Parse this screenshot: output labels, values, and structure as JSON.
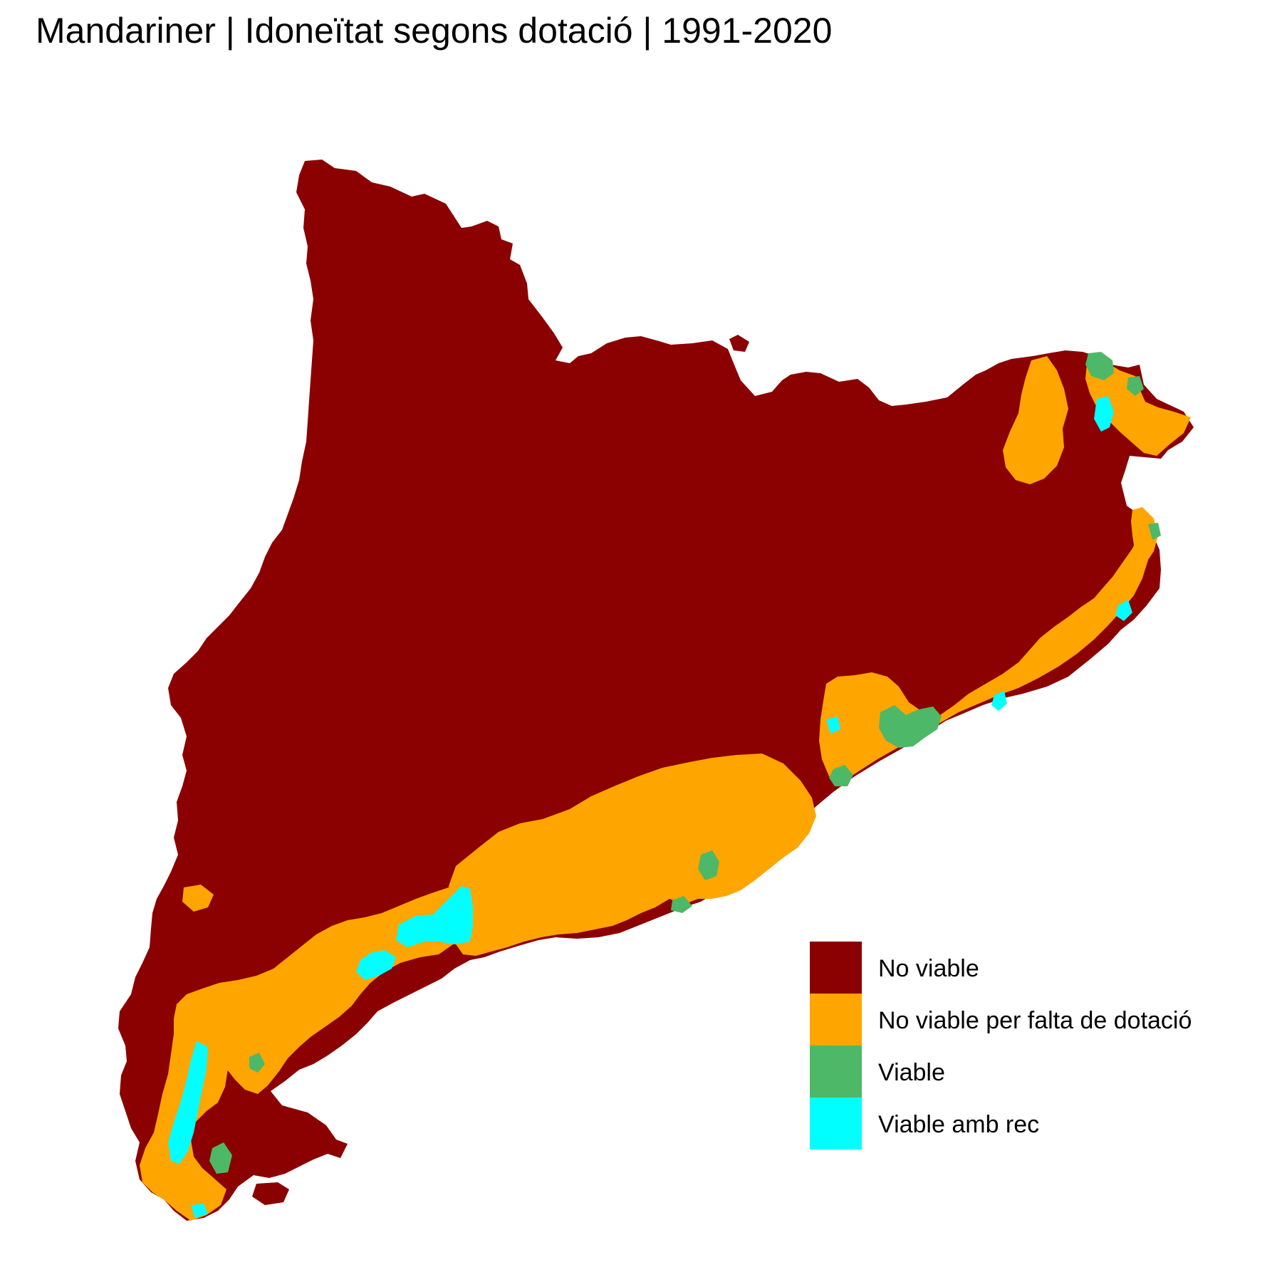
{
  "title": "Mandariner | Idoneïtat segons dotació | 1991-2020",
  "legend": {
    "items": [
      {
        "label": "No viable",
        "color": "#8B0000"
      },
      {
        "label": "No viable per falta de dotació",
        "color": "#FFA500"
      },
      {
        "label": "Viable",
        "color": "#4DB867"
      },
      {
        "label": "Viable amb rec",
        "color": "#00FFFF"
      }
    ]
  }
}
